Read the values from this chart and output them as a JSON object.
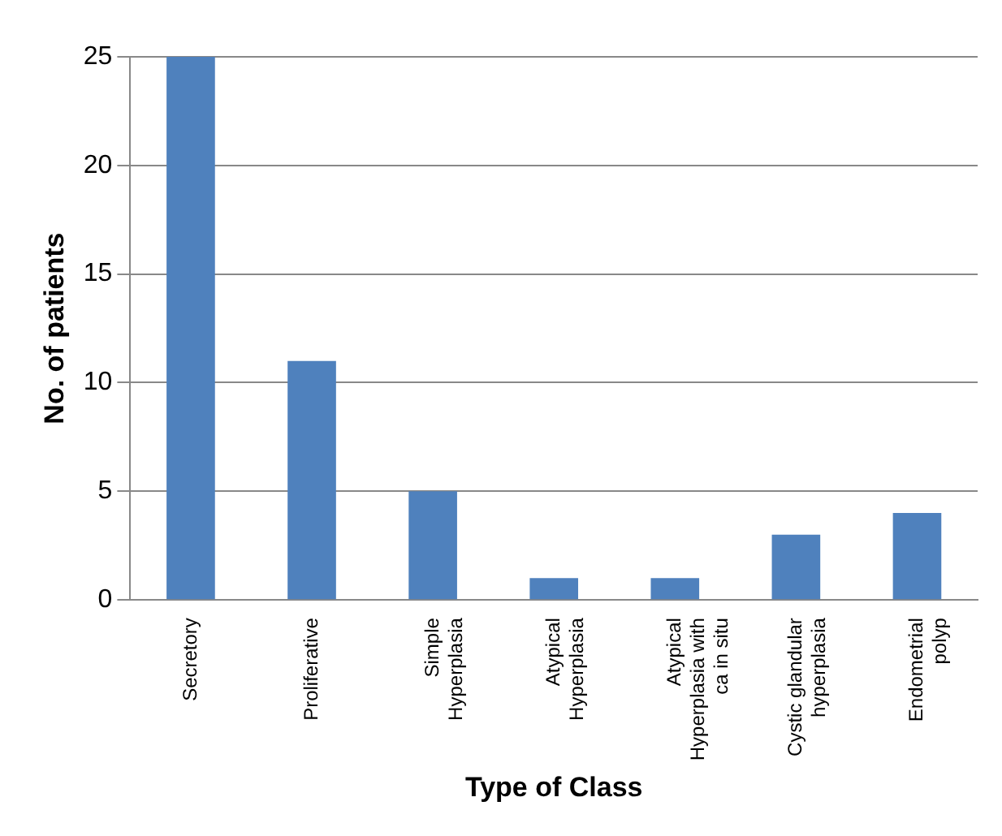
{
  "chart_data": {
    "type": "bar",
    "xlabel": "Type of Class",
    "ylabel": "No. of patients",
    "categories": [
      "Secretory",
      "Proliferative",
      "Simple Hyperplasia",
      "Atypical Hyperplasia",
      "Atypical Hyperplasia with ca in situ",
      "Cystic glandular hyperplasia",
      "Endometrial polyp"
    ],
    "values": [
      25,
      11,
      5,
      1,
      1,
      3,
      4
    ],
    "color": "#4f81bd",
    "ylim": [
      0,
      25
    ],
    "yticks": [
      0,
      5,
      10,
      15,
      20,
      25
    ],
    "grid": "y",
    "legend": false
  }
}
